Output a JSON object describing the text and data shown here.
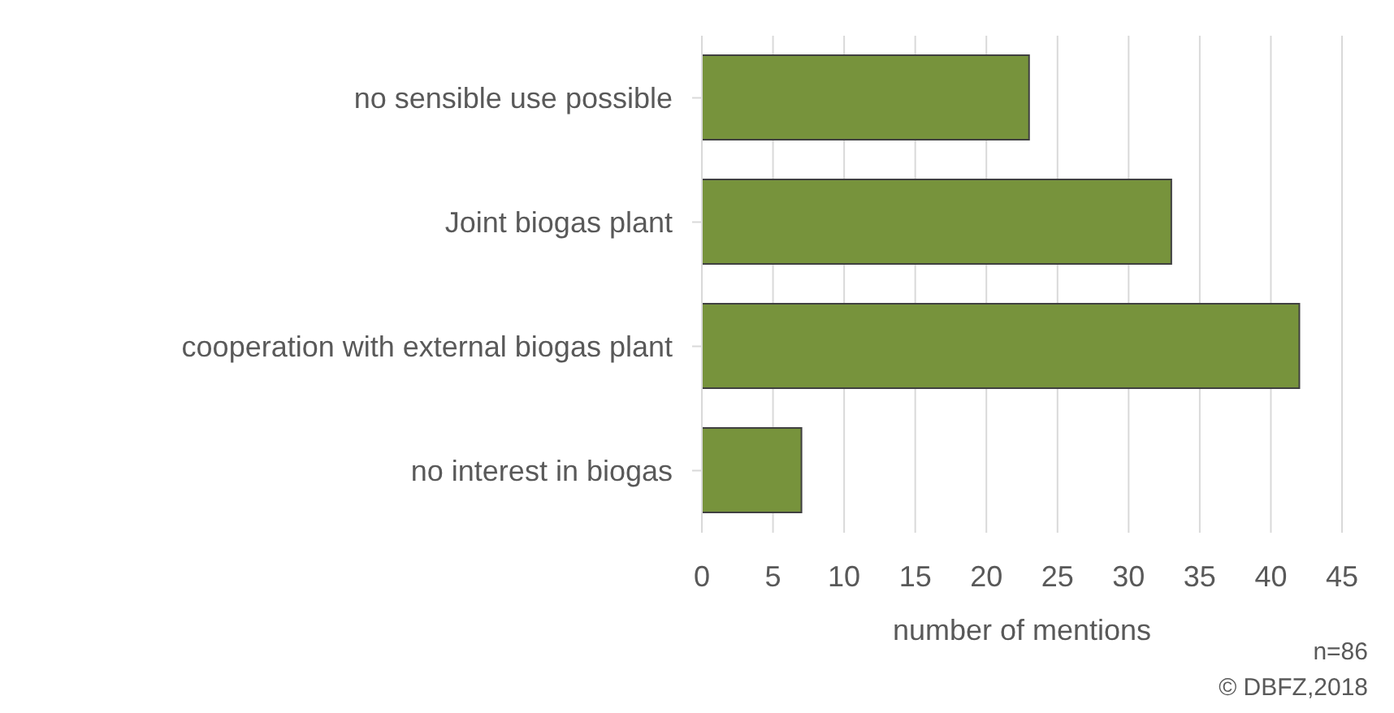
{
  "chart_data": {
    "type": "bar",
    "orientation": "horizontal",
    "categories": [
      "no sensible use possible",
      "Joint biogas plant",
      "cooperation with external biogas plant",
      "no interest in biogas"
    ],
    "values": [
      23,
      33,
      42,
      7
    ],
    "color": "#77933c",
    "xlim": [
      0,
      45
    ],
    "xticks": [
      0,
      5,
      10,
      15,
      20,
      25,
      30,
      35,
      40,
      45
    ],
    "xlabel": "number of mentions",
    "grid": "x",
    "annotations": [
      "n=86",
      "© DBFZ,2018"
    ]
  }
}
